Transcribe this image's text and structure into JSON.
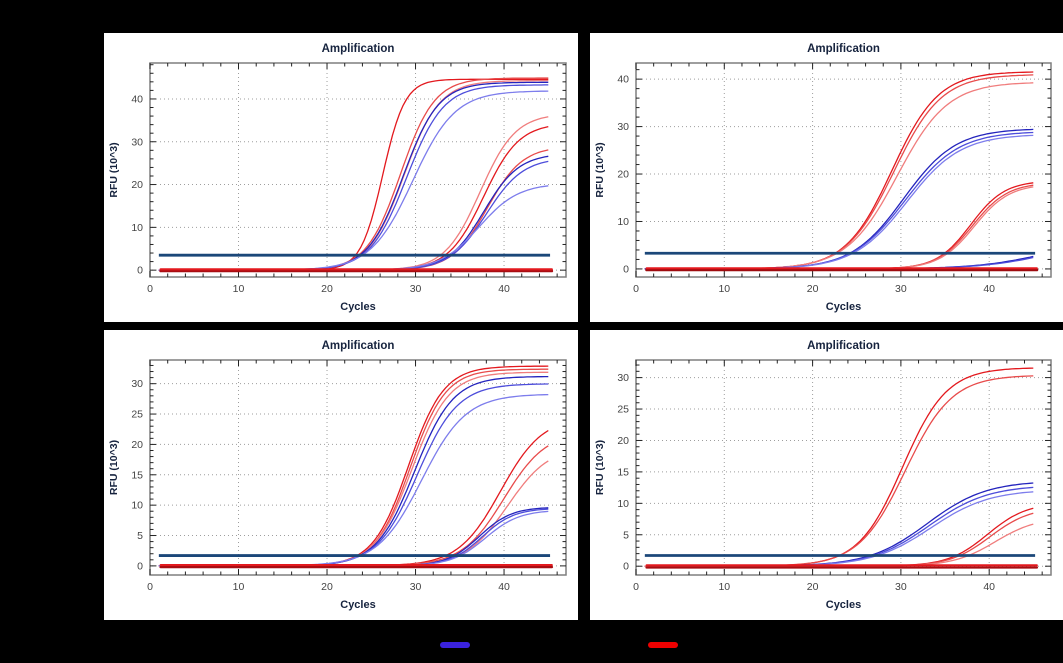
{
  "figure": {
    "background_color": "#000000",
    "panel_background_color": "#ffffff",
    "frame_color": "#7f7f7f",
    "tick_color": "#222222",
    "grid_color": "#9e9e9e",
    "text_color": "#16233e",
    "tick_label_color": "#444444"
  },
  "legend": {
    "entries": [
      {
        "name": "blue-series-marker",
        "color": "#3a22dd"
      },
      {
        "name": "red-series-marker",
        "color": "#ee0000"
      }
    ]
  },
  "chart_data": [
    {
      "id": "top-left",
      "type": "line",
      "title": "Amplification",
      "xlabel": "Cycles",
      "ylabel": "RFU (10^3)",
      "xlim": [
        0,
        47
      ],
      "ylim": [
        -1.6,
        48.4
      ],
      "xticks": [
        0,
        10,
        20,
        30,
        40
      ],
      "yticks": [
        0,
        10,
        20,
        30,
        40
      ],
      "x_minor_step": 2,
      "y_minor_step": 2,
      "grid": "dotted",
      "x_data_range": [
        1,
        45
      ],
      "threshold": {
        "value": 3.5,
        "color": "#1b4779",
        "x_start": 1,
        "x_end": 45.2
      },
      "series": [
        {
          "type": "sigmoid",
          "color": "#e3191e",
          "midpoint_cycle": 26.3,
          "plateau_rfu": 44.6,
          "slope": 0.8
        },
        {
          "type": "sigmoid",
          "color": "#e84b4b",
          "midpoint_cycle": 28.3,
          "plateau_rfu": 44.9,
          "slope": 0.52
        },
        {
          "type": "sigmoid",
          "color": "#f07d7d",
          "midpoint_cycle": 28.7,
          "plateau_rfu": 44.3,
          "slope": 0.5
        },
        {
          "type": "sigmoid",
          "color": "#2424bd",
          "midpoint_cycle": 28.6,
          "plateau_rfu": 43.9,
          "slope": 0.5
        },
        {
          "type": "sigmoid",
          "color": "#4d4ddb",
          "midpoint_cycle": 29.0,
          "plateau_rfu": 43.3,
          "slope": 0.48
        },
        {
          "type": "sigmoid",
          "color": "#7d7dec",
          "midpoint_cycle": 29.7,
          "plateau_rfu": 41.9,
          "slope": 0.42
        },
        {
          "type": "sigmoid",
          "color": "#f07d7d",
          "midpoint_cycle": 37.3,
          "plateau_rfu": 36.6,
          "slope": 0.5
        },
        {
          "type": "sigmoid",
          "color": "#e3191e",
          "midpoint_cycle": 37.7,
          "plateau_rfu": 34.4,
          "slope": 0.5
        },
        {
          "type": "sigmoid",
          "color": "#e84b4b",
          "midpoint_cycle": 38.1,
          "plateau_rfu": 29.0,
          "slope": 0.5
        },
        {
          "type": "sigmoid",
          "color": "#2424bd",
          "midpoint_cycle": 37.7,
          "plateau_rfu": 27.3,
          "slope": 0.5
        },
        {
          "type": "sigmoid",
          "color": "#4d4ddb",
          "midpoint_cycle": 38.0,
          "plateau_rfu": 26.3,
          "slope": 0.48
        },
        {
          "type": "sigmoid",
          "color": "#7d7dec",
          "midpoint_cycle": 37.2,
          "plateau_rfu": 20.3,
          "slope": 0.45
        },
        {
          "type": "flat",
          "color": "#a80d12",
          "value": -0.2,
          "line_width": 2.6
        },
        {
          "type": "flat",
          "color": "#e3191e",
          "value": 0.2,
          "line_width": 2.2
        }
      ]
    },
    {
      "id": "top-right",
      "type": "line",
      "title": "Amplification",
      "xlabel": "Cycles",
      "ylabel": "RFU (10^3)",
      "xlim": [
        0,
        47
      ],
      "ylim": [
        -1.7,
        43.4
      ],
      "xticks": [
        0,
        10,
        20,
        30,
        40
      ],
      "yticks": [
        0,
        10,
        20,
        30,
        40
      ],
      "x_minor_step": 2,
      "y_minor_step": 2,
      "grid": "dotted",
      "x_data_range": [
        1,
        45
      ],
      "threshold": {
        "value": 3.3,
        "color": "#1b4779",
        "x_start": 1,
        "x_end": 45.2
      },
      "series": [
        {
          "type": "sigmoid",
          "color": "#e3191e",
          "midpoint_cycle": 29.0,
          "plateau_rfu": 41.6,
          "slope": 0.38
        },
        {
          "type": "sigmoid",
          "color": "#e84b4b",
          "midpoint_cycle": 29.2,
          "plateau_rfu": 41.0,
          "slope": 0.37
        },
        {
          "type": "sigmoid",
          "color": "#f07d7d",
          "midpoint_cycle": 29.6,
          "plateau_rfu": 39.4,
          "slope": 0.35
        },
        {
          "type": "sigmoid",
          "color": "#2424bd",
          "midpoint_cycle": 30.3,
          "plateau_rfu": 29.6,
          "slope": 0.34
        },
        {
          "type": "sigmoid",
          "color": "#4d4ddb",
          "midpoint_cycle": 30.5,
          "plateau_rfu": 29.0,
          "slope": 0.33
        },
        {
          "type": "sigmoid",
          "color": "#7d7dec",
          "midpoint_cycle": 30.7,
          "plateau_rfu": 28.4,
          "slope": 0.33
        },
        {
          "type": "sigmoid",
          "color": "#e3191e",
          "midpoint_cycle": 37.9,
          "plateau_rfu": 18.6,
          "slope": 0.52
        },
        {
          "type": "sigmoid",
          "color": "#e84b4b",
          "midpoint_cycle": 38.1,
          "plateau_rfu": 18.2,
          "slope": 0.5
        },
        {
          "type": "sigmoid",
          "color": "#f07d7d",
          "midpoint_cycle": 38.3,
          "plateau_rfu": 17.9,
          "slope": 0.5
        },
        {
          "type": "sigmoid",
          "color": "#2424bd",
          "midpoint_cycle": 47.0,
          "plateau_rfu": 7.0,
          "slope": 0.25
        },
        {
          "type": "sigmoid",
          "color": "#4d4ddb",
          "midpoint_cycle": 47.6,
          "plateau_rfu": 7.0,
          "slope": 0.25
        },
        {
          "type": "flat",
          "color": "#9e0b0f",
          "value": -0.2,
          "line_width": 2.8
        },
        {
          "type": "flat",
          "color": "#e3191e",
          "value": 0.15,
          "line_width": 2.0
        }
      ]
    },
    {
      "id": "bottom-left",
      "type": "line",
      "title": "Amplification",
      "xlabel": "Cycles",
      "ylabel": "RFU (10^3)",
      "xlim": [
        0,
        47
      ],
      "ylim": [
        -1.5,
        33.9
      ],
      "xticks": [
        0,
        10,
        20,
        30,
        40
      ],
      "yticks": [
        0,
        5,
        10,
        15,
        20,
        25,
        30
      ],
      "x_minor_step": 2,
      "y_minor_step": 1,
      "grid": "dotted",
      "x_data_range": [
        1,
        45
      ],
      "threshold": {
        "value": 1.7,
        "color": "#1b4779",
        "x_start": 1,
        "x_end": 45.2
      },
      "series": [
        {
          "type": "sigmoid",
          "color": "#e3191e",
          "midpoint_cycle": 29.2,
          "plateau_rfu": 32.9,
          "slope": 0.5
        },
        {
          "type": "sigmoid",
          "color": "#e84b4b",
          "midpoint_cycle": 29.4,
          "plateau_rfu": 32.4,
          "slope": 0.5
        },
        {
          "type": "sigmoid",
          "color": "#f07d7d",
          "midpoint_cycle": 29.6,
          "plateau_rfu": 31.9,
          "slope": 0.48
        },
        {
          "type": "sigmoid",
          "color": "#2424bd",
          "midpoint_cycle": 29.9,
          "plateau_rfu": 31.2,
          "slope": 0.46
        },
        {
          "type": "sigmoid",
          "color": "#4d4ddb",
          "midpoint_cycle": 30.2,
          "plateau_rfu": 30.0,
          "slope": 0.44
        },
        {
          "type": "sigmoid",
          "color": "#7d7dec",
          "midpoint_cycle": 30.7,
          "plateau_rfu": 28.3,
          "slope": 0.4
        },
        {
          "type": "sigmoid",
          "color": "#e3191e",
          "midpoint_cycle": 39.6,
          "plateau_rfu": 24.6,
          "slope": 0.42
        },
        {
          "type": "sigmoid",
          "color": "#e84b4b",
          "midpoint_cycle": 40.0,
          "plateau_rfu": 22.2,
          "slope": 0.42
        },
        {
          "type": "sigmoid",
          "color": "#f07d7d",
          "midpoint_cycle": 40.4,
          "plateau_rfu": 19.8,
          "slope": 0.42
        },
        {
          "type": "sigmoid",
          "color": "#2424bd",
          "midpoint_cycle": 37.2,
          "plateau_rfu": 9.7,
          "slope": 0.55
        },
        {
          "type": "sigmoid",
          "color": "#4d4ddb",
          "midpoint_cycle": 37.5,
          "plateau_rfu": 9.5,
          "slope": 0.55
        },
        {
          "type": "sigmoid",
          "color": "#7d7dec",
          "midpoint_cycle": 37.9,
          "plateau_rfu": 9.2,
          "slope": 0.52
        },
        {
          "type": "flat",
          "color": "#a80d12",
          "value": -0.2,
          "line_width": 2.4
        },
        {
          "type": "flat",
          "color": "#e3191e",
          "value": 0.15,
          "line_width": 2.0
        }
      ]
    },
    {
      "id": "bottom-right",
      "type": "line",
      "title": "Amplification",
      "xlabel": "Cycles",
      "ylabel": "RFU (10^3)",
      "xlim": [
        0,
        47
      ],
      "ylim": [
        -1.4,
        32.8
      ],
      "xticks": [
        0,
        10,
        20,
        30,
        40
      ],
      "yticks": [
        0,
        5,
        10,
        15,
        20,
        25,
        30
      ],
      "x_minor_step": 2,
      "y_minor_step": 1,
      "grid": "dotted",
      "x_data_range": [
        1,
        45
      ],
      "threshold": {
        "value": 1.7,
        "color": "#1b4779",
        "x_start": 1,
        "x_end": 45.2
      },
      "series": [
        {
          "type": "sigmoid",
          "color": "#e3191e",
          "midpoint_cycle": 30.2,
          "plateau_rfu": 31.6,
          "slope": 0.4
        },
        {
          "type": "sigmoid",
          "color": "#e84b4b",
          "midpoint_cycle": 30.5,
          "plateau_rfu": 30.4,
          "slope": 0.38
        },
        {
          "type": "sigmoid",
          "color": "#2424bd",
          "midpoint_cycle": 33.0,
          "plateau_rfu": 13.6,
          "slope": 0.3
        },
        {
          "type": "sigmoid",
          "color": "#4d4ddb",
          "midpoint_cycle": 33.2,
          "plateau_rfu": 12.9,
          "slope": 0.3
        },
        {
          "type": "sigmoid",
          "color": "#7d7dec",
          "midpoint_cycle": 33.4,
          "plateau_rfu": 12.2,
          "slope": 0.3
        },
        {
          "type": "sigmoid",
          "color": "#e3191e",
          "midpoint_cycle": 39.8,
          "plateau_rfu": 10.1,
          "slope": 0.45
        },
        {
          "type": "sigmoid",
          "color": "#e84b4b",
          "midpoint_cycle": 40.1,
          "plateau_rfu": 9.4,
          "slope": 0.44
        },
        {
          "type": "sigmoid",
          "color": "#f07d7d",
          "midpoint_cycle": 40.7,
          "plateau_rfu": 7.8,
          "slope": 0.42
        },
        {
          "type": "flat",
          "color": "#a80d12",
          "value": -0.2,
          "line_width": 2.4
        },
        {
          "type": "flat",
          "color": "#e3191e",
          "value": 0.15,
          "line_width": 2.0
        }
      ]
    }
  ]
}
